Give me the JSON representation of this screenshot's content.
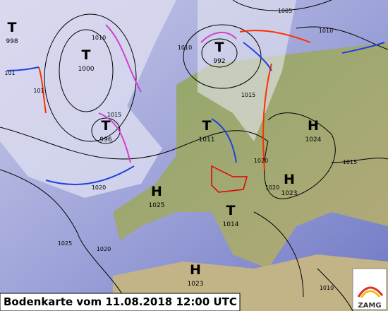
{
  "caption": "Bodenkarte vom 11.08.2018 12:00 UTC",
  "logo": "ZAMG",
  "pressure_centers": [
    {
      "symbol": "T",
      "value": "998"
    },
    {
      "symbol": "T",
      "value": "1000"
    },
    {
      "symbol": "T",
      "value": "996"
    },
    {
      "symbol": "T",
      "value": "992"
    },
    {
      "symbol": "T",
      "value": "1011"
    },
    {
      "symbol": "H",
      "value": "1024"
    },
    {
      "symbol": "H",
      "value": "1023"
    },
    {
      "symbol": "H",
      "value": "1025"
    },
    {
      "symbol": "T",
      "value": "1014"
    },
    {
      "symbol": "H",
      "value": "1023"
    }
  ],
  "isobar_labels": [
    "1005",
    "1010",
    "1010",
    "1010",
    "1015",
    "1015",
    "1020",
    "1020",
    "1025",
    "1020",
    "1015",
    "1020",
    "1010",
    "101",
    "101"
  ]
}
